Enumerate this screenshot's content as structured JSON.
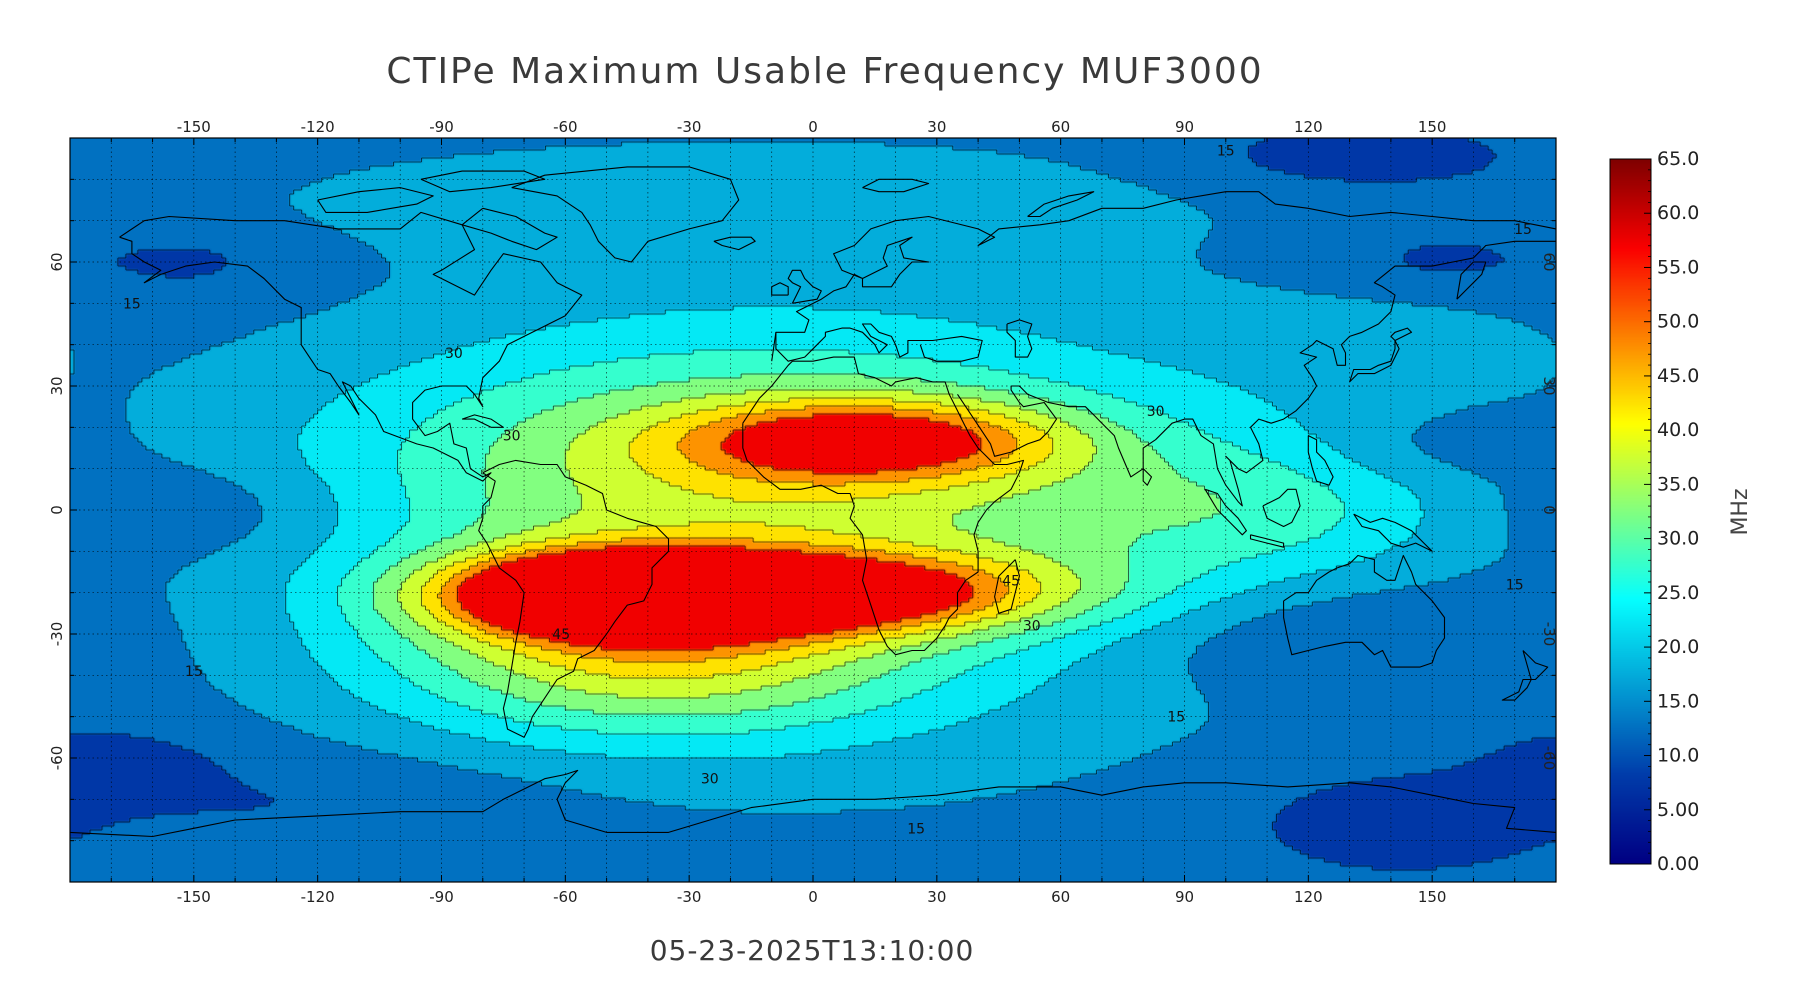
{
  "title": "CTIPe Maximum Usable Frequency MUF3000",
  "timestamp": "05-23-2025T13:10:00",
  "chart_data": {
    "type": "heatmap",
    "title": "CTIPe Maximum Usable Frequency MUF3000",
    "xlim": [
      -180,
      180
    ],
    "ylim": [
      -90,
      90
    ],
    "x_ticks": [
      "-150",
      "-120",
      "-90",
      "-60",
      "-30",
      "0",
      "30",
      "60",
      "90",
      "120",
      "150"
    ],
    "y_ticks": [
      "60",
      "30",
      "0",
      "-30",
      "-60"
    ],
    "x_tick_values": [
      -150,
      -120,
      -90,
      -60,
      -30,
      0,
      30,
      60,
      90,
      120,
      150
    ],
    "y_tick_values": [
      60,
      30,
      0,
      -30,
      -60
    ],
    "colorbar": {
      "label": "MHz",
      "range": [
        0,
        65
      ],
      "tick_labels": [
        "65.0",
        "60.0",
        "55.0",
        "50.0",
        "45.0",
        "40.0",
        "35.0",
        "30.0",
        "25.0",
        "20.0",
        "15.0",
        "10.0",
        "5.00",
        "0.00"
      ],
      "tick_values": [
        65,
        60,
        55,
        50,
        45,
        40,
        35,
        30,
        25,
        20,
        15,
        10,
        5,
        0
      ]
    },
    "contour_labels": [
      {
        "text": "15",
        "lon": -165,
        "lat": 50
      },
      {
        "text": "15",
        "lon": -150,
        "lat": -39
      },
      {
        "text": "15",
        "lon": 25,
        "lat": -77
      },
      {
        "text": "15",
        "lon": 88,
        "lat": -50
      },
      {
        "text": "15",
        "lon": 170,
        "lat": -18
      },
      {
        "text": "15",
        "lon": 172,
        "lat": 68
      },
      {
        "text": "15",
        "lon": 100,
        "lat": 87
      },
      {
        "text": "30",
        "lon": -87,
        "lat": 38
      },
      {
        "text": "30",
        "lon": -73,
        "lat": 18
      },
      {
        "text": "30",
        "lon": -25,
        "lat": -65
      },
      {
        "text": "30",
        "lon": 53,
        "lat": -28
      },
      {
        "text": "30",
        "lon": 83,
        "lat": 24
      },
      {
        "text": "45",
        "lon": -61,
        "lat": -30
      },
      {
        "text": "45",
        "lon": 48,
        "lat": -17
      }
    ],
    "field_model": {
      "background": 12.0,
      "components": [
        {
          "lon": -52,
          "lat": -20,
          "amp": 38,
          "slon": 28,
          "slat": 7
        },
        {
          "lon": 5,
          "lat": -20,
          "amp": 30,
          "slon": 42,
          "slat": 7
        },
        {
          "lon": -40,
          "lat": -35,
          "amp": 22,
          "slon": 45,
          "slat": 14
        },
        {
          "lon": 15,
          "lat": 17,
          "amp": 25,
          "slon": 33,
          "slat": 7
        },
        {
          "lon": -20,
          "lat": 10,
          "amp": 17,
          "slon": 70,
          "slat": 22
        },
        {
          "lon": 5,
          "lat": -5,
          "amp": 10,
          "slon": 90,
          "slat": 42
        },
        {
          "lon": 110,
          "lat": 0,
          "amp": 9,
          "slon": 35,
          "slat": 12
        },
        {
          "lon": -20,
          "lat": 75,
          "amp": 6,
          "slon": 80,
          "slat": 10
        },
        {
          "lon": 140,
          "lat": 40,
          "amp": 4,
          "slon": 30,
          "slat": 10
        },
        {
          "lon": -150,
          "lat": 0,
          "amp": -5,
          "slon": 30,
          "slat": 8
        },
        {
          "lon": -150,
          "lat": 60,
          "amp": -4,
          "slon": 20,
          "slat": 6
        },
        {
          "lon": 150,
          "lat": 60,
          "amp": -4,
          "slon": 20,
          "slat": 6
        },
        {
          "lon": 120,
          "lat": -30,
          "amp": -5,
          "slon": 35,
          "slat": 10
        },
        {
          "lon": 140,
          "lat": -75,
          "amp": -5,
          "slon": 30,
          "slat": 10
        },
        {
          "lon": 130,
          "lat": 85,
          "amp": -5,
          "slon": 30,
          "slat": 6
        },
        {
          "lon": -170,
          "lat": -60,
          "amp": -4,
          "slon": 20,
          "slat": 6
        },
        {
          "lon": -120,
          "lat": -70,
          "amp": -3,
          "slon": 40,
          "slat": 8
        },
        {
          "lon": 150,
          "lat": 15,
          "amp": -3,
          "slon": 20,
          "slat": 6
        }
      ],
      "contour_levels": [
        5,
        10,
        15,
        20,
        25,
        30,
        35,
        40,
        45,
        50
      ]
    },
    "grid": true,
    "legend": "colorbar-right",
    "coastlines": true
  }
}
